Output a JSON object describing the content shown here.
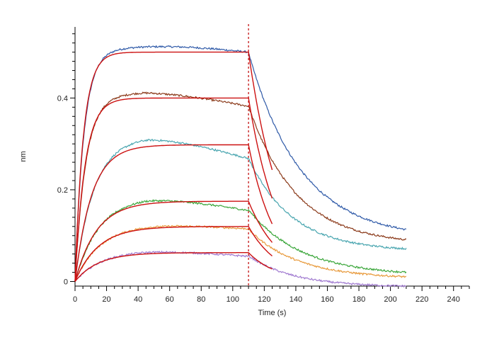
{
  "chart_data": {
    "type": "line",
    "title": "",
    "xlabel": "Time (s)",
    "ylabel": "nm",
    "xlim": [
      0,
      250
    ],
    "ylim": [
      -0.01,
      0.555
    ],
    "x_ticks": [
      0,
      20,
      40,
      60,
      80,
      100,
      120,
      140,
      160,
      180,
      200,
      220,
      240
    ],
    "y_ticks": [
      0,
      0.2,
      0.4
    ],
    "y_tick_labels": [
      "0",
      "0.2",
      "0.4"
    ],
    "x_minor_step": 5,
    "y_minor_step": 0.02,
    "grid": false,
    "legend": "none",
    "marker_line": {
      "x": 110,
      "color": "#c00000"
    },
    "association_end": 110,
    "dissociation_end": 210,
    "fit_dissociation_end": 125,
    "series": [
      {
        "color": "#2f5aa8",
        "plateau": 0.5,
        "k_on": 0.18,
        "overshoot": 0.012,
        "drift": 0.0,
        "end": 0.093,
        "k_off": 0.03
      },
      {
        "color": "#8b3a1a",
        "plateau": 0.4,
        "k_on": 0.15,
        "overshoot": 0.012,
        "drift": 0.018,
        "end": 0.08,
        "k_off": 0.033
      },
      {
        "color": "#4aa6b0",
        "plateau": 0.298,
        "k_on": 0.09,
        "overshoot": 0.016,
        "drift": 0.03,
        "end": 0.066,
        "k_off": 0.036
      },
      {
        "color": "#3aa63a",
        "plateau": 0.175,
        "k_on": 0.07,
        "overshoot": 0.008,
        "drift": 0.02,
        "end": 0.013,
        "k_off": 0.03
      },
      {
        "color": "#e89a3c",
        "plateau": 0.12,
        "k_on": 0.065,
        "overshoot": 0.004,
        "drift": 0.005,
        "end": 0.006,
        "k_off": 0.032
      },
      {
        "color": "#a07ad0",
        "plateau": 0.063,
        "k_on": 0.065,
        "overshoot": 0.004,
        "drift": 0.008,
        "end": -0.012,
        "k_off": 0.035
      }
    ],
    "fit_color": "#cc1111"
  }
}
